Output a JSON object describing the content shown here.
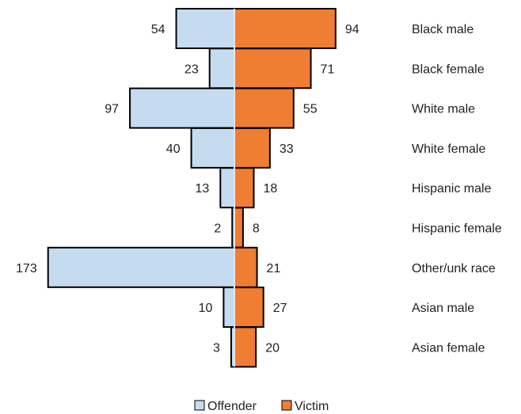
{
  "chart_data": {
    "type": "bar",
    "orientation": "horizontal",
    "layout": "diverging",
    "title": "",
    "xlabel": "",
    "ylabel": "",
    "categories": [
      "Black male",
      "Black female",
      "White male",
      "White female",
      "Hispanic male",
      "Hispanic female",
      "Other/unk race",
      "Asian male",
      "Asian female"
    ],
    "series": [
      {
        "name": "Offender",
        "direction": "left",
        "color": "#c5dbf0",
        "values": [
          54,
          23,
          97,
          40,
          13,
          2,
          173,
          10,
          3
        ]
      },
      {
        "name": "Victim",
        "direction": "right",
        "color": "#ef7e32",
        "values": [
          94,
          71,
          55,
          33,
          18,
          8,
          21,
          27,
          20
        ]
      }
    ],
    "data_labels": true,
    "grid": false,
    "legend_position": "bottom"
  }
}
